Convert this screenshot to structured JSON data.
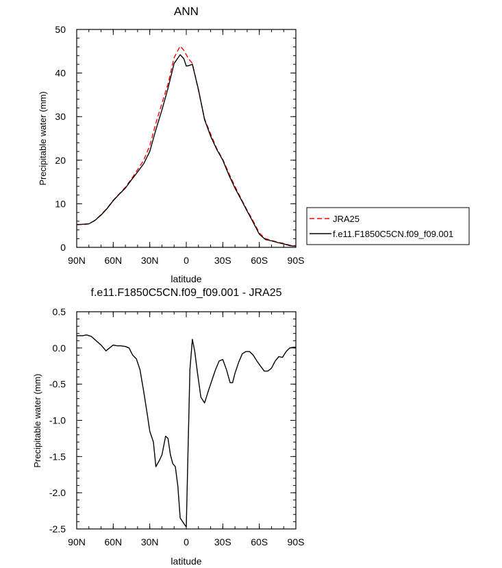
{
  "chart_data": [
    {
      "type": "line",
      "title": "ANN",
      "xlabel": "latitude",
      "ylabel": "Precipitable water (mm)",
      "x_tick_labels": [
        "90N",
        "60N",
        "30N",
        "0",
        "30S",
        "60S",
        "90S"
      ],
      "x_ticks": [
        90,
        60,
        30,
        0,
        -30,
        -60,
        -90
      ],
      "xlim": [
        90,
        -90
      ],
      "ylim": [
        0,
        50
      ],
      "y_ticks": [
        0,
        10,
        20,
        30,
        40,
        50
      ],
      "legend_position": "right",
      "grid": false,
      "series": [
        {
          "name": "JRA25",
          "color": "#ff0000",
          "dash": "dashed",
          "x": [
            90,
            85,
            80,
            75,
            70,
            65,
            60,
            55,
            50,
            45,
            40,
            35,
            30,
            25,
            20,
            15,
            10,
            5,
            2,
            0,
            -2,
            -5,
            -10,
            -15,
            -20,
            -25,
            -30,
            -35,
            -40,
            -45,
            -50,
            -55,
            -60,
            -65,
            -70,
            -75,
            -80,
            -85,
            -88,
            -90
          ],
          "y": [
            5.3,
            5.2,
            5.4,
            6.2,
            7.5,
            9.0,
            10.8,
            12.3,
            13.8,
            15.7,
            17.8,
            20.0,
            23.3,
            28.5,
            33.0,
            37.5,
            43.5,
            46.2,
            45.2,
            44.2,
            43.2,
            42.2,
            36.0,
            29.5,
            26.0,
            22.7,
            20.2,
            17.0,
            14.0,
            11.2,
            8.5,
            6.0,
            3.3,
            2.0,
            1.6,
            1.2,
            0.9,
            0.5,
            0.4,
            0.4
          ]
        },
        {
          "name": "f.e11.F1850C5CN.f09_f09.001",
          "color": "#000000",
          "dash": "solid",
          "x": [
            90,
            85,
            80,
            75,
            70,
            65,
            60,
            55,
            50,
            45,
            40,
            35,
            30,
            25,
            20,
            15,
            10,
            5,
            2,
            0,
            -2,
            -5,
            -10,
            -15,
            -20,
            -25,
            -30,
            -35,
            -40,
            -45,
            -50,
            -55,
            -60,
            -65,
            -70,
            -75,
            -80,
            -85,
            -88,
            -90
          ],
          "y": [
            5.2,
            5.3,
            5.4,
            6.2,
            7.4,
            8.9,
            10.7,
            12.2,
            13.6,
            15.5,
            17.3,
            19.2,
            22.0,
            27.0,
            31.5,
            36.5,
            42.2,
            44.2,
            43.3,
            41.6,
            41.7,
            42.0,
            36.2,
            29.3,
            25.5,
            22.5,
            20.0,
            16.6,
            13.6,
            11.0,
            8.3,
            5.7,
            3.0,
            1.8,
            1.5,
            1.1,
            0.8,
            0.4,
            0.3,
            0.3
          ]
        }
      ]
    },
    {
      "type": "line",
      "title": "f.e11.F1850C5CN.f09_f09.001 - JRA25",
      "xlabel": "latitude",
      "ylabel": "Precipitable water (mm)",
      "x_tick_labels": [
        "90N",
        "60N",
        "30N",
        "0",
        "30S",
        "60S",
        "90S"
      ],
      "x_ticks": [
        90,
        60,
        30,
        0,
        -30,
        -60,
        -90
      ],
      "xlim": [
        90,
        -90
      ],
      "ylim": [
        -2.5,
        0.5
      ],
      "y_ticks": [
        -2.5,
        -2.0,
        -1.5,
        -1.0,
        -0.5,
        0.0,
        0.5
      ],
      "y_tick_labels": [
        "-2.5",
        "-2.0",
        "-1.5",
        "-1.0",
        "-0.5",
        "0.0",
        "0.5"
      ],
      "grid": false,
      "series": [
        {
          "color": "#000000",
          "dash": "solid",
          "x": [
            90,
            85,
            82,
            78,
            74,
            70,
            66,
            63,
            60,
            57,
            54,
            50,
            47,
            44,
            41,
            38,
            35,
            32,
            30,
            27,
            25,
            22,
            20,
            17,
            15,
            13,
            11,
            9,
            7,
            5,
            3,
            1,
            0,
            -3,
            -5,
            -7,
            -9,
            -12,
            -15,
            -18,
            -21,
            -24,
            -27,
            -30,
            -33,
            -36,
            -38,
            -40,
            -43,
            -46,
            -49,
            -52,
            -55,
            -58,
            -61,
            -64,
            -67,
            -70,
            -73,
            -76,
            -79,
            -82,
            -85,
            -88,
            -90
          ],
          "y": [
            0.17,
            0.17,
            0.18,
            0.16,
            0.1,
            0.04,
            -0.04,
            0.0,
            0.04,
            0.03,
            0.03,
            0.02,
            0.0,
            -0.1,
            -0.15,
            -0.3,
            -0.6,
            -0.92,
            -1.15,
            -1.3,
            -1.64,
            -1.55,
            -1.48,
            -1.22,
            -1.25,
            -1.48,
            -1.6,
            -1.64,
            -1.9,
            -2.35,
            -2.4,
            -2.45,
            -2.47,
            -0.3,
            0.12,
            -0.05,
            -0.32,
            -0.68,
            -0.76,
            -0.6,
            -0.45,
            -0.3,
            -0.18,
            -0.16,
            -0.3,
            -0.48,
            -0.48,
            -0.35,
            -0.2,
            -0.08,
            -0.05,
            -0.05,
            -0.1,
            -0.18,
            -0.25,
            -0.32,
            -0.32,
            -0.28,
            -0.18,
            -0.12,
            -0.13,
            -0.05,
            0.0,
            0.01,
            0.01
          ]
        }
      ]
    }
  ]
}
